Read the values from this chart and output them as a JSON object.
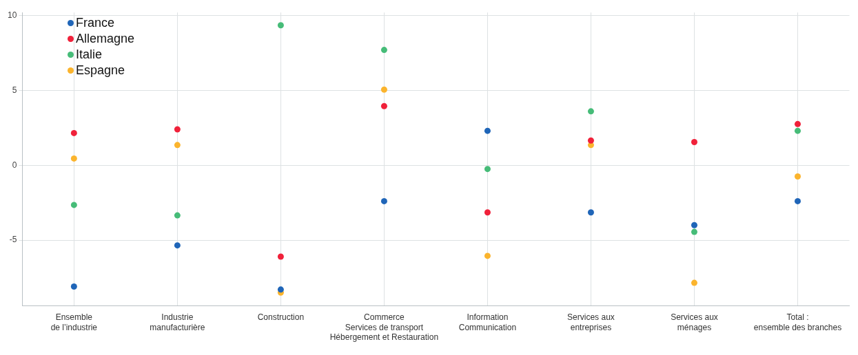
{
  "chart_data": {
    "type": "scatter",
    "categories": [
      "Ensemble\nde l’industrie",
      "Industrie\nmanufacturière",
      "Construction",
      "Commerce\nServices de transport\nHébergement et Restauration",
      "Information\nCommunication",
      "Services aux\nentreprises",
      "Services aux\nménages",
      "Total :\nensemble des branches"
    ],
    "series": [
      {
        "name": "France",
        "color": "#1f65b8",
        "values": [
          -8.1,
          -5.35,
          -8.3,
          -2.4,
          2.3,
          -3.15,
          -4.0,
          -2.4
        ]
      },
      {
        "name": "Allemagne",
        "color": "#f0213a",
        "values": [
          2.15,
          2.4,
          -6.1,
          3.95,
          -3.15,
          1.65,
          1.55,
          2.75
        ]
      },
      {
        "name": "Italie",
        "color": "#46bc78",
        "values": [
          -2.65,
          -3.35,
          9.35,
          7.7,
          -0.25,
          3.6,
          -4.45,
          2.3
        ]
      },
      {
        "name": "Espagne",
        "color": "#fbb42d",
        "values": [
          0.45,
          1.35,
          -8.5,
          5.05,
          -6.05,
          1.35,
          -7.85,
          -0.75
        ]
      }
    ],
    "ylim": [
      -9.4,
      10.2
    ],
    "yticks": [
      {
        "value": -5,
        "label": "-5"
      },
      0,
      5,
      10
    ],
    "grid": true,
    "legend": "top left",
    "marker": "circle"
  }
}
